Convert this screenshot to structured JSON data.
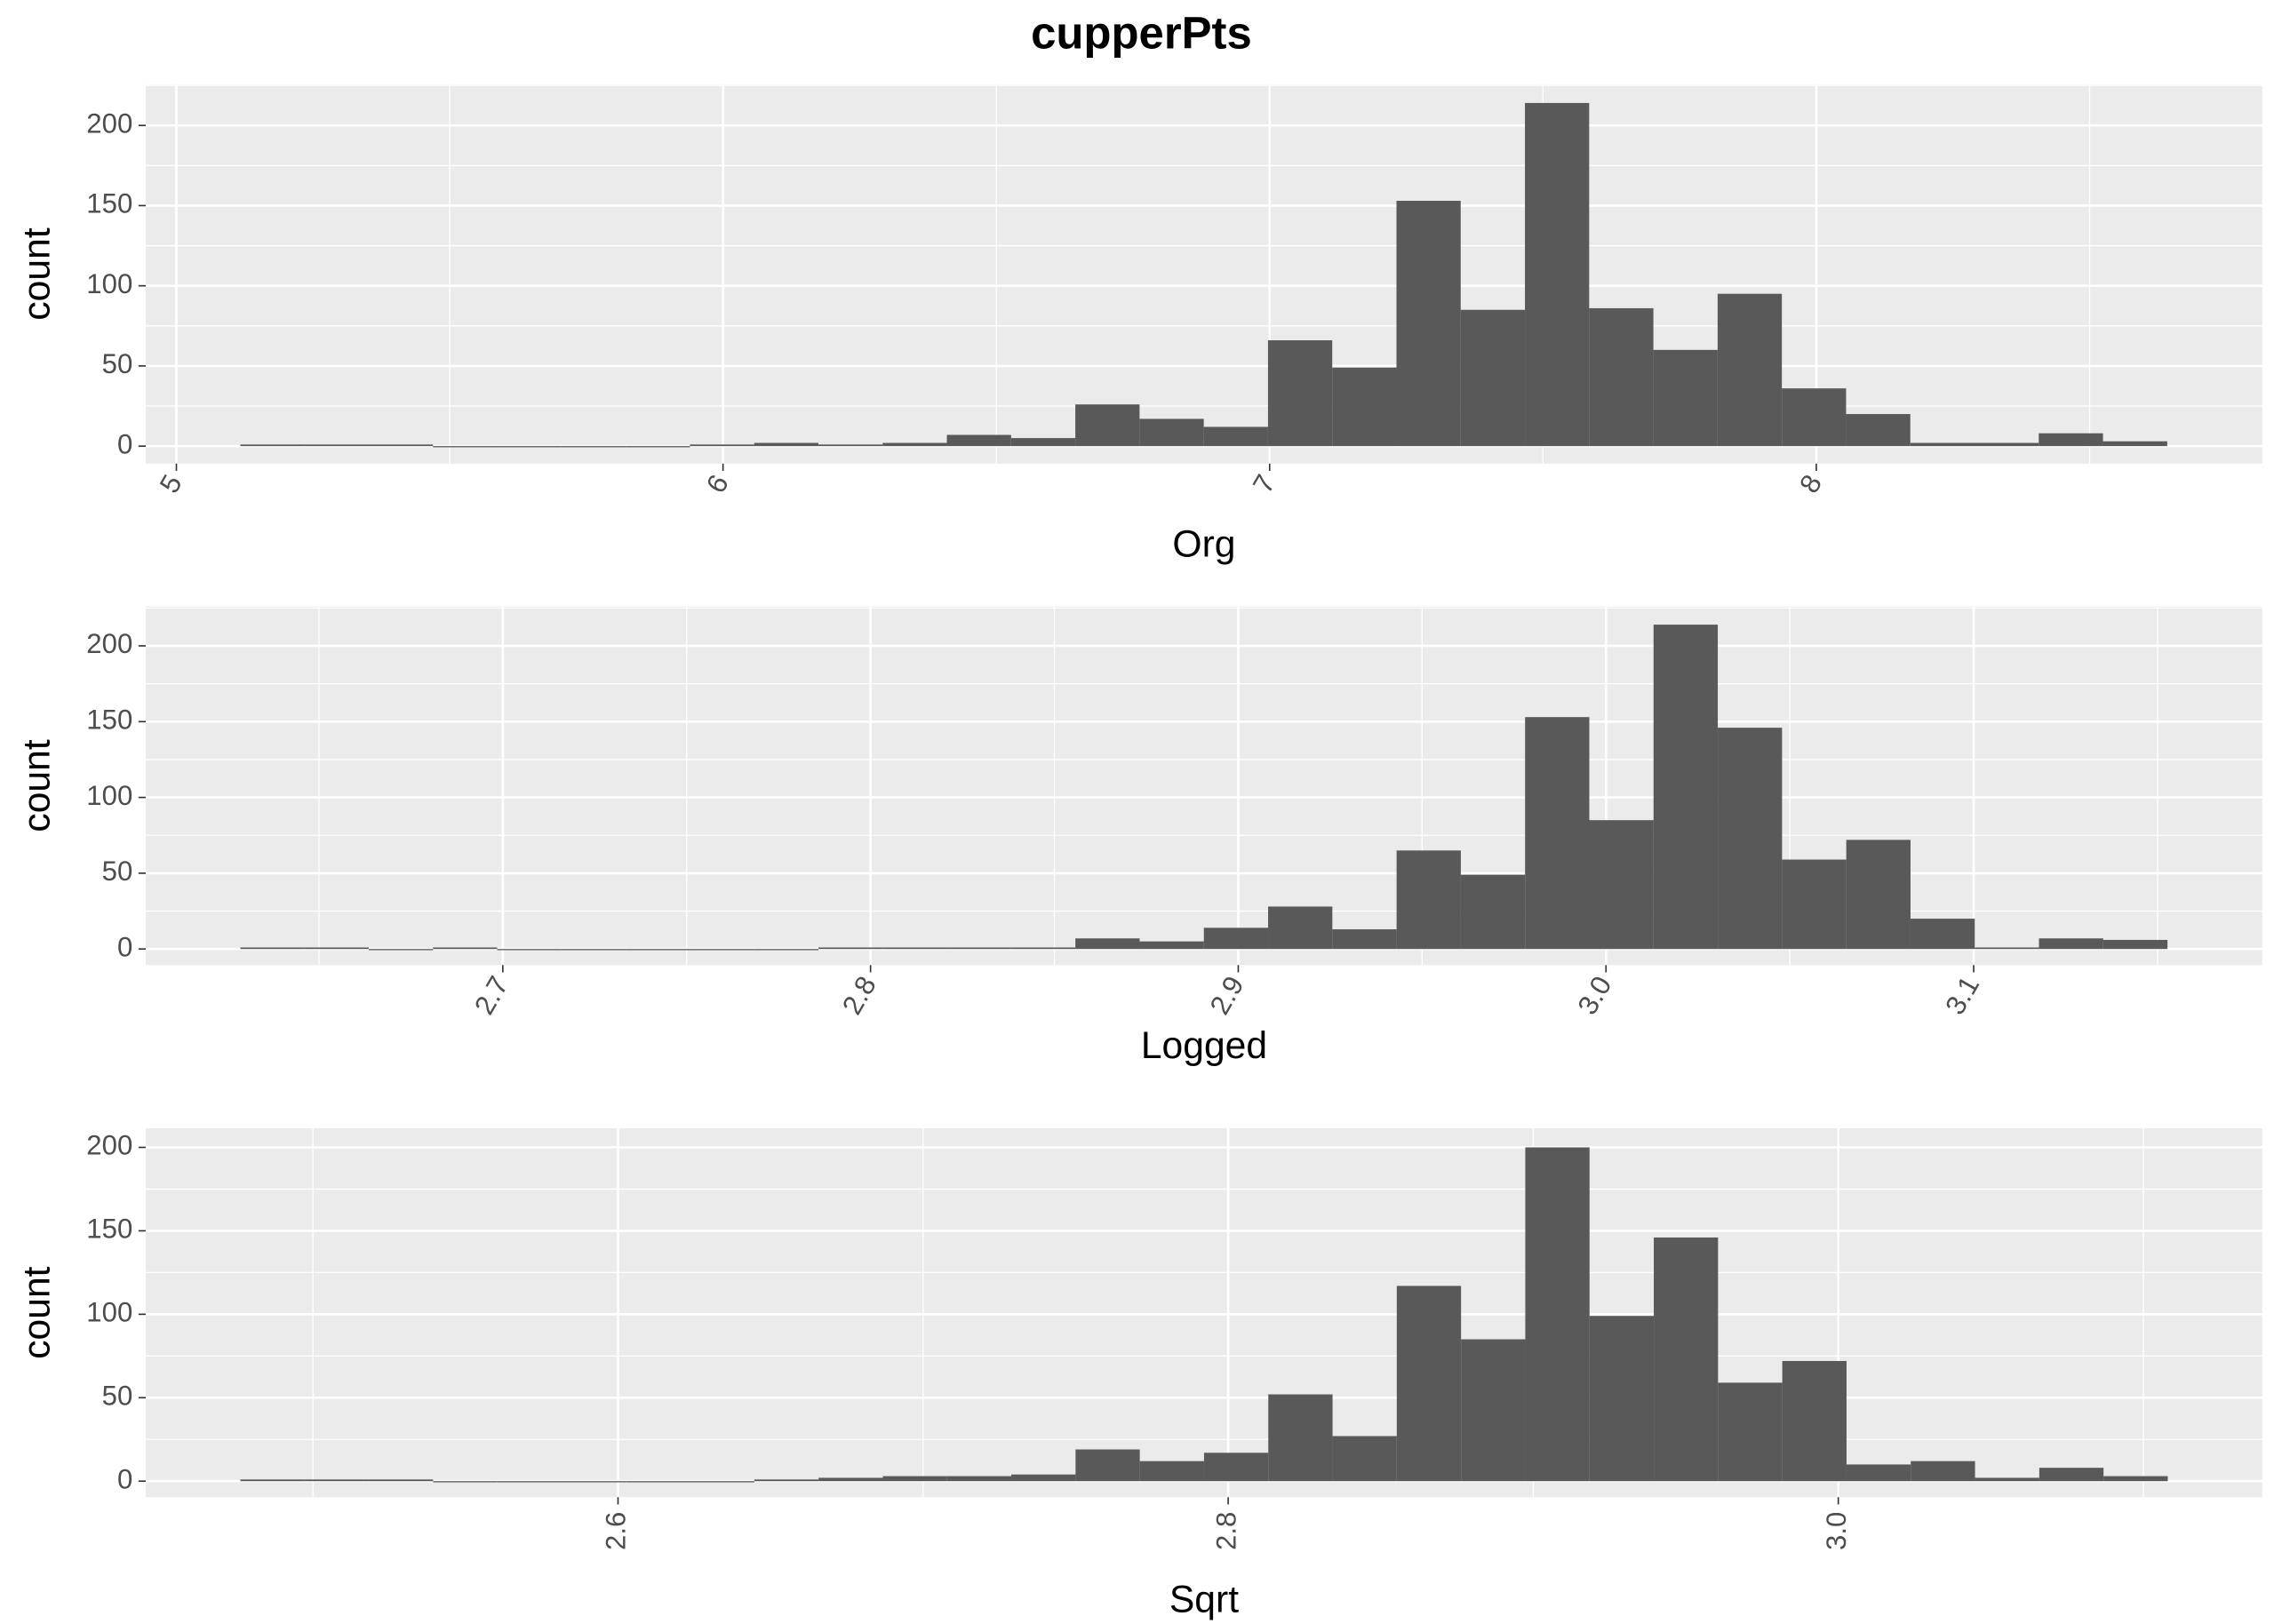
{
  "title": "cupperPts",
  "chart_data": [
    {
      "type": "histogram",
      "xlabel": "Org",
      "ylabel": "count",
      "color": "#595959",
      "grid": true,
      "xtick_rotation": -60,
      "bins": [
        5.117,
        5.2345,
        5.352,
        5.4695,
        5.587,
        5.7045,
        5.822,
        5.9395,
        6.057,
        6.1745,
        6.292,
        6.4095,
        6.527,
        6.6445,
        6.762,
        6.8795,
        6.997,
        7.1145,
        7.232,
        7.3495,
        7.467,
        7.5845,
        7.702,
        7.8195,
        7.937,
        8.0545,
        8.172,
        8.2895,
        8.407,
        8.5245,
        8.642
      ],
      "values": [
        1,
        1,
        1,
        0,
        0,
        0,
        0,
        1,
        2,
        1,
        2,
        7,
        5,
        26,
        17,
        12,
        66,
        49,
        153,
        85,
        214,
        86,
        60,
        95,
        36,
        20,
        2,
        2,
        8,
        3
      ],
      "xlim": [
        4.944,
        8.816
      ],
      "xticks": [
        5,
        6,
        7,
        8
      ],
      "ylim": [
        -10.9,
        225.5
      ],
      "yticks": [
        0,
        50,
        100,
        150,
        200
      ]
    },
    {
      "type": "histogram",
      "xlabel": "Logged",
      "ylabel": "count",
      "color": "#595959",
      "grid": true,
      "xtick_rotation": -60,
      "bins": [
        2.6286,
        2.64607,
        2.66354,
        2.68101,
        2.69848,
        2.71595,
        2.73342,
        2.75089,
        2.76836,
        2.78583,
        2.8033,
        2.82077,
        2.83824,
        2.85571,
        2.87318,
        2.89065,
        2.90812,
        2.92559,
        2.94306,
        2.96053,
        2.978,
        2.99547,
        3.01294,
        3.03041,
        3.04788,
        3.06535,
        3.08282,
        3.10029,
        3.11776,
        3.13523,
        3.1527
      ],
      "values": [
        1,
        1,
        0,
        1,
        0,
        0,
        0,
        0,
        0,
        1,
        1,
        1,
        1,
        7,
        5,
        14,
        28,
        13,
        65,
        49,
        153,
        85,
        214,
        146,
        59,
        72,
        20,
        1,
        7,
        6
      ],
      "xlim": [
        2.6029,
        3.1785
      ],
      "xticks": [
        2.7,
        2.8,
        2.9,
        {
          "value": 3,
          "label": "3.0"
        },
        3.1
      ],
      "ylim": [
        -10.6,
        226
      ],
      "yticks": [
        0,
        50,
        100,
        150,
        200
      ]
    },
    {
      "type": "histogram",
      "xlabel": "Sqrt",
      "ylabel": "count",
      "color": "#595959",
      "grid": true,
      "xtick_rotation": -90,
      "bins": [
        2.4762,
        2.49726,
        2.51832,
        2.53938,
        2.56044,
        2.5815,
        2.60256,
        2.62362,
        2.64468,
        2.66574,
        2.6868,
        2.70786,
        2.72892,
        2.74998,
        2.77104,
        2.7921,
        2.81316,
        2.83422,
        2.85528,
        2.87634,
        2.8974,
        2.91846,
        2.93952,
        2.96058,
        2.98164,
        3.0027,
        3.02376,
        3.04482,
        3.06588,
        3.08694,
        3.108
      ],
      "values": [
        1,
        1,
        1,
        0,
        0,
        0,
        0,
        0,
        1,
        2,
        3,
        3,
        4,
        19,
        12,
        17,
        52,
        27,
        117,
        85,
        200,
        99,
        146,
        59,
        72,
        10,
        12,
        2,
        8,
        3
      ],
      "xlim": [
        2.4452,
        3.139
      ],
      "xticks": [
        2.6,
        2.8,
        {
          "value": 3,
          "label": "3.0"
        }
      ],
      "ylim": [
        -9.6,
        211.4
      ],
      "yticks": [
        0,
        50,
        100,
        150,
        200
      ]
    }
  ]
}
